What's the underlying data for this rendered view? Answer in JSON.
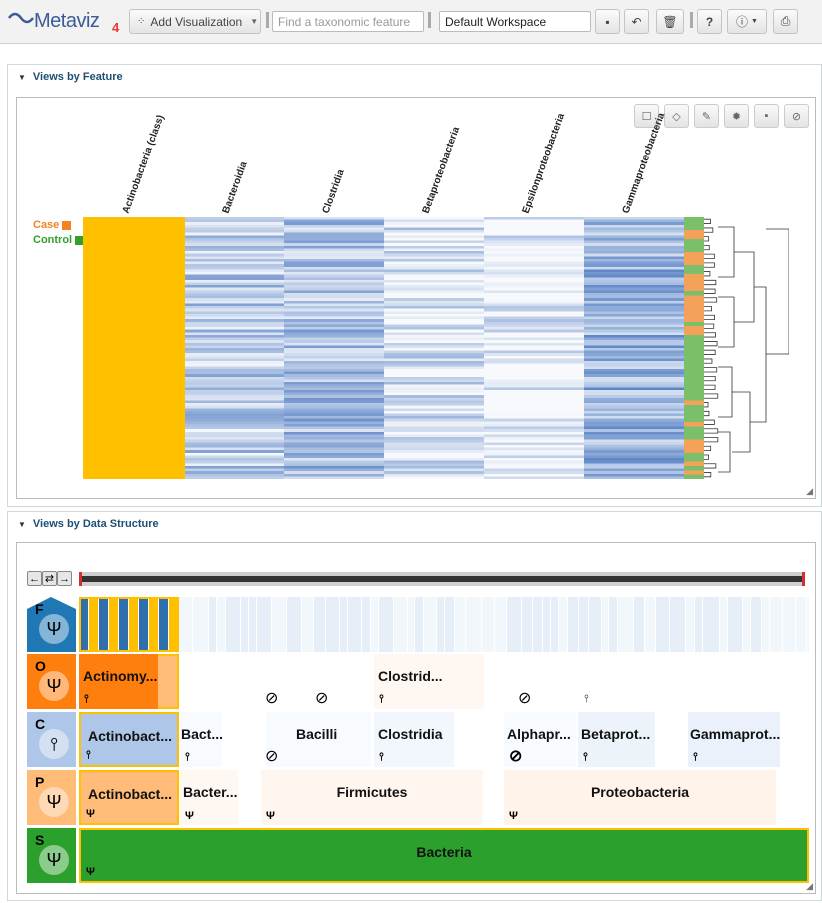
{
  "toolbar": {
    "logo_text": "Metaviz",
    "logo_version": "4",
    "add_viz_label": "Add Visualization",
    "search_placeholder": "Find a taxonomic feature",
    "workspace_value": "Default Workspace"
  },
  "panels": {
    "feature_title": "Views by Feature",
    "structure_title": "Views by Data Structure"
  },
  "heatmap": {
    "columns": [
      "Actinobacteria (class)",
      "Bacteroidia",
      "Clostridia",
      "Betaproteobacteria",
      "Epsilonproteobacteria",
      "Gammaproteobacteria"
    ],
    "legend": [
      {
        "label": "Case",
        "color": "#f58220"
      },
      {
        "label": "Control",
        "color": "#33a02c"
      }
    ],
    "colors": {
      "high": "#ffc000",
      "low": "#f7f9fc",
      "mid": "#4a78c1"
    }
  },
  "icicle": {
    "levels": [
      {
        "letter": "F",
        "color": "#1f78b4"
      },
      {
        "letter": "O",
        "color": "#ff7f0e"
      },
      {
        "letter": "C",
        "color": "#aec7e8"
      },
      {
        "letter": "P",
        "color": "#ffbb78"
      },
      {
        "letter": "S",
        "color": "#2ca02c"
      }
    ],
    "order_nodes": [
      "Actinomy...",
      "Clostrid..."
    ],
    "class_nodes": [
      "Actinobact...",
      "Bact...",
      "Bacilli",
      "Clostridia",
      "Alphapr...",
      "Betaprot...",
      "Gammaprot..."
    ],
    "phylum_nodes": [
      "Actinobact...",
      "Bacter...",
      "Firmicutes",
      "Proteobacteria"
    ],
    "superkingdom_node": "Bacteria"
  }
}
